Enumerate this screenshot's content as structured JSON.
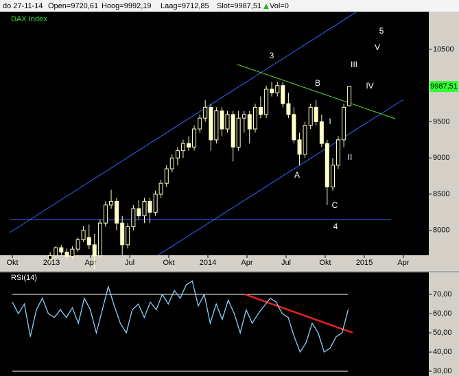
{
  "header": [
    "do 27-11-14",
    "Open=9720,61",
    "Hoog=9992,19",
    "Laag=9712,85",
    "Slot=9987,51",
    "Vol=0"
  ],
  "chart_data": [
    {
      "type": "candlestick",
      "title": "DAX Index",
      "up_color": "#ffffc8",
      "down_color": "#ffffc8",
      "x": [
        2.9,
        3.33,
        3.75,
        4.18,
        4.6,
        5.03,
        5.45,
        5.88,
        6.3,
        6.73,
        7.15,
        7.58,
        8.0,
        8.43,
        8.85,
        9.28,
        9.7,
        10.13,
        10.55,
        10.98,
        11.4,
        11.83,
        12.25,
        12.68,
        13.1,
        13.53,
        13.95,
        14.38,
        14.8,
        15.23,
        15.65,
        16.08,
        16.5,
        16.93,
        17.35,
        17.78,
        18.2,
        18.63,
        19.05,
        19.48,
        19.9,
        20.33,
        20.75,
        21.18,
        21.6,
        22.03,
        22.45,
        22.88,
        23.3,
        23.73,
        24.15,
        24.58,
        25.0,
        25.43,
        25.85
      ],
      "open": [
        7600,
        7650,
        7760,
        7700,
        7640,
        7740,
        7870,
        7900,
        7800,
        7650,
        8100,
        8350,
        8400,
        8100,
        7800,
        8050,
        8300,
        8200,
        8400,
        8250,
        8500,
        8650,
        8850,
        9000,
        9100,
        9200,
        9150,
        9400,
        9550,
        9700,
        9250,
        9650,
        9400,
        9600,
        9150,
        9550,
        9600,
        9400,
        9700,
        9600,
        9950,
        9900,
        10000,
        9750,
        9600,
        9250,
        9050,
        9450,
        9700,
        9500,
        9200,
        8600,
        8900,
        9250,
        9720.61
      ],
      "high": [
        7700,
        7780,
        7800,
        7750,
        7780,
        7900,
        8060,
        8080,
        7950,
        8150,
        8400,
        8560,
        8450,
        8200,
        8100,
        8350,
        8420,
        8450,
        8450,
        8550,
        8700,
        8900,
        9050,
        9150,
        9250,
        9300,
        9450,
        9600,
        9800,
        9750,
        9700,
        9700,
        9650,
        9650,
        9650,
        9650,
        9650,
        9750,
        9850,
        10000,
        10050,
        10050,
        10050,
        9900,
        9700,
        9350,
        9500,
        9750,
        9800,
        9600,
        9250,
        9000,
        9300,
        9750,
        9992.19
      ],
      "low": [
        7550,
        7620,
        7650,
        7580,
        7600,
        7700,
        7840,
        7740,
        7460,
        7620,
        8050,
        8300,
        8000,
        7650,
        7750,
        8000,
        8150,
        8100,
        8100,
        8200,
        8450,
        8600,
        8800,
        8900,
        9000,
        9100,
        9100,
        9350,
        9500,
        9100,
        9200,
        9300,
        9350,
        8950,
        9100,
        9350,
        9200,
        9350,
        9550,
        9550,
        9850,
        9850,
        9700,
        9550,
        9200,
        8900,
        9000,
        9400,
        9450,
        9150,
        8350,
        8550,
        8850,
        9150,
        9712.85
      ],
      "close": [
        7650,
        7760,
        7700,
        7640,
        7740,
        7870,
        8000,
        7800,
        7650,
        8100,
        8350,
        8400,
        8100,
        7800,
        8050,
        8300,
        8200,
        8400,
        8250,
        8500,
        8650,
        8850,
        9000,
        9100,
        9200,
        9150,
        9400,
        9550,
        9700,
        9250,
        9650,
        9400,
        9600,
        9150,
        9550,
        9600,
        9400,
        9700,
        9600,
        9950,
        9900,
        10000,
        9750,
        9600,
        9250,
        9050,
        9450,
        9700,
        9500,
        9200,
        8600,
        8900,
        9250,
        9700,
        9987.51
      ],
      "last_price": {
        "value": 9987.51,
        "label": "9987,51"
      },
      "xlim": [
        -0.95,
        31.95
      ],
      "xticks": [
        {
          "value": 0,
          "label": "Okt"
        },
        {
          "value": 3,
          "label": "2013"
        },
        {
          "value": 6,
          "label": "Apr"
        },
        {
          "value": 9,
          "label": "Jul"
        },
        {
          "value": 12,
          "label": "Okt"
        },
        {
          "value": 15,
          "label": "2014"
        },
        {
          "value": 18,
          "label": "Apr"
        },
        {
          "value": 21,
          "label": "Jul"
        },
        {
          "value": 24,
          "label": "Okt"
        },
        {
          "value": 27,
          "label": "2015"
        },
        {
          "value": 30,
          "label": "Apr"
        }
      ],
      "ylim": [
        7656,
        11021
      ],
      "yticks": [
        8000,
        8500,
        9000,
        9500,
        10500
      ],
      "annotations": [
        "3",
        "5",
        "V",
        "III",
        "B",
        "IV",
        "I",
        "A",
        "II",
        "C",
        "4"
      ]
    },
    {
      "type": "line",
      "title": "RSI(14)",
      "color": "#8fd0f5",
      "x": [
        0,
        0.46,
        0.92,
        1.38,
        1.84,
        2.3,
        2.76,
        3.22,
        3.68,
        4.14,
        4.6,
        5.06,
        5.52,
        5.98,
        6.44,
        6.9,
        7.36,
        7.82,
        8.28,
        8.74,
        9.2,
        9.66,
        10.12,
        10.58,
        11.04,
        11.5,
        11.96,
        12.42,
        12.88,
        13.34,
        13.8,
        14.26,
        14.72,
        15.18,
        15.64,
        16.1,
        16.56,
        17.02,
        17.48,
        17.94,
        18.4,
        18.86,
        19.32,
        19.78,
        20.24,
        20.7,
        21.16,
        21.62,
        22.08,
        22.54,
        23.0,
        23.46,
        23.92,
        24.38,
        24.84,
        25.3,
        25.76
      ],
      "values": [
        66,
        60,
        65,
        48,
        62,
        68,
        60,
        58,
        62,
        58,
        63,
        55,
        68,
        62,
        50,
        62,
        74,
        64,
        55,
        50,
        62,
        65,
        58,
        66,
        62,
        70,
        65,
        72,
        68,
        75,
        77,
        64,
        70,
        55,
        65,
        57,
        67,
        60,
        50,
        62,
        55,
        60,
        64,
        68,
        66,
        60,
        58,
        48,
        40,
        45,
        55,
        50,
        40,
        42,
        48,
        50,
        62
      ],
      "xlim": [
        -0.95,
        31.95
      ],
      "ylim": [
        28.6,
        81.1
      ],
      "yticks": [
        {
          "value": 70,
          "label": "70,00"
        },
        {
          "value": 60,
          "label": "60,00"
        },
        {
          "value": 50,
          "label": "50,00"
        },
        {
          "value": 40,
          "label": "40,00"
        },
        {
          "value": 30,
          "label": "30,00"
        }
      ]
    }
  ]
}
